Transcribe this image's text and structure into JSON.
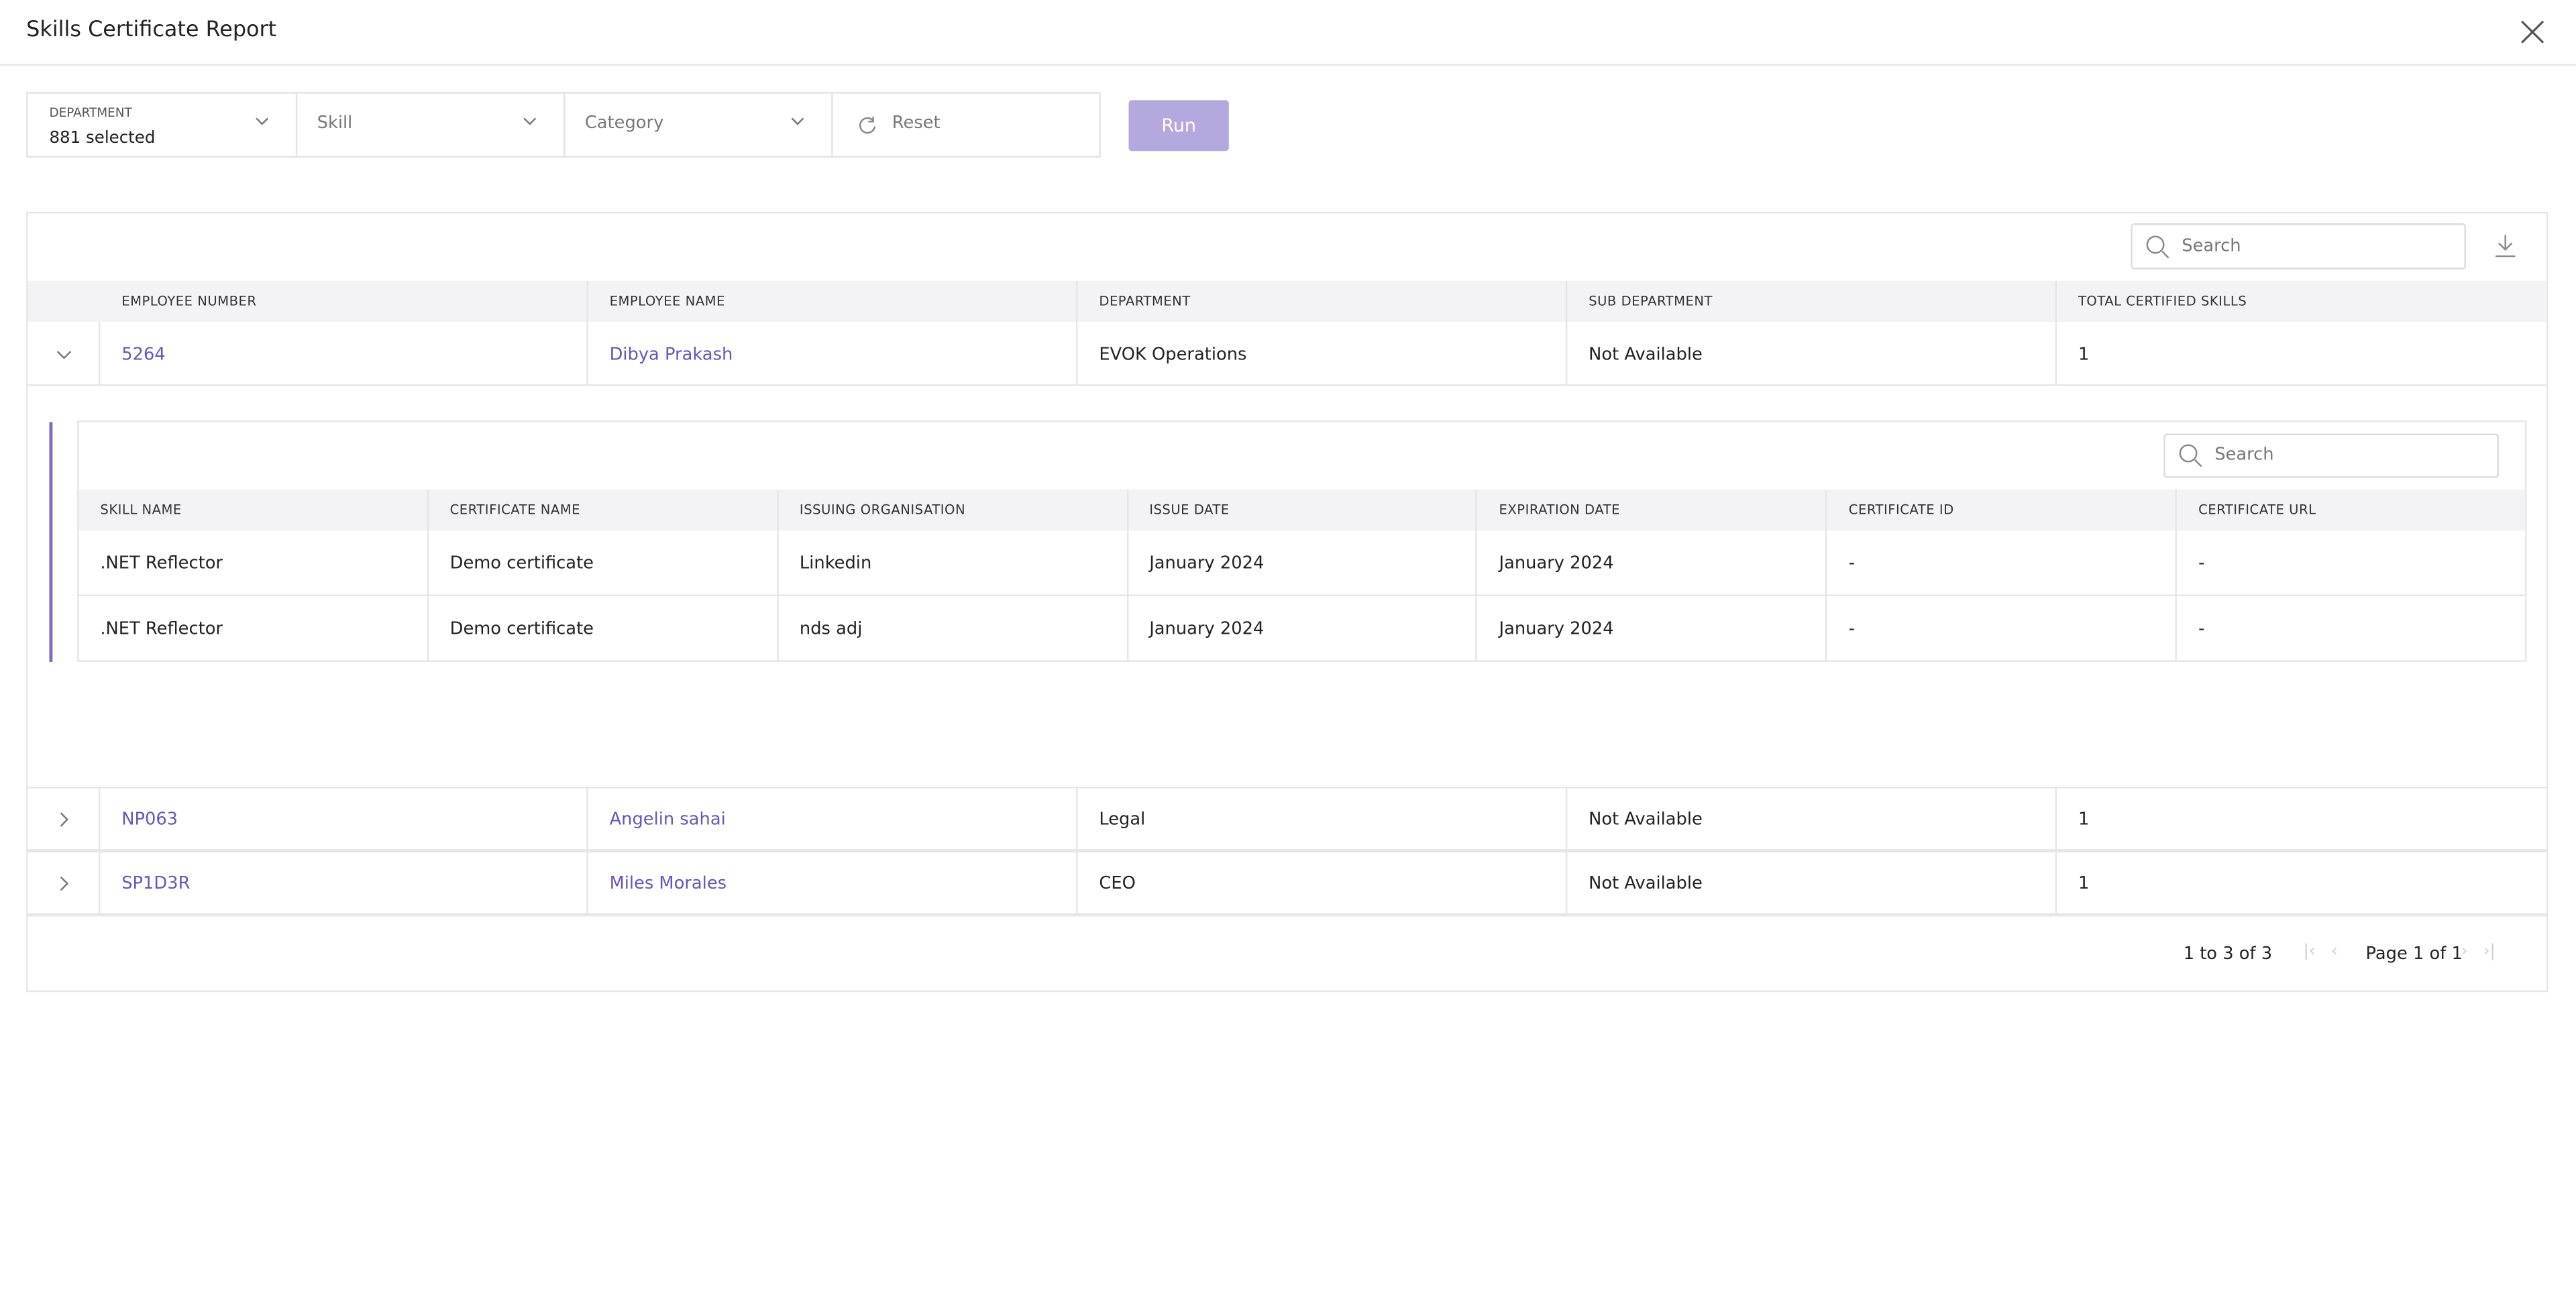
{
  "header": {
    "title": "Skills Certificate Report"
  },
  "filters": {
    "department_label": "DEPARTMENT",
    "department_value": "881 selected",
    "skill": "Skill",
    "category": "Category",
    "reset": "Reset",
    "run": "Run"
  },
  "table": {
    "search_placeholder": "Search",
    "columns": [
      "EMPLOYEE NUMBER",
      "EMPLOYEE NAME",
      "DEPARTMENT",
      "SUB DEPARTMENT",
      "TOTAL CERTIFIED SKILLS"
    ],
    "rows": [
      [
        "5264",
        "Dibya Prakash",
        "EVOK Operations",
        "Not Available",
        "1"
      ],
      [
        "NP063",
        "Angelin sahai",
        "Legal",
        "Not Available",
        "1"
      ],
      [
        "SP1D3R",
        "Miles Morales",
        "CEO",
        "Not Available",
        "1"
      ]
    ]
  },
  "sub_table": {
    "search_placeholder": "Search",
    "columns": [
      "SKILL NAME",
      "CERTIFICATE NAME",
      "ISSUING ORGANISATION",
      "ISSUE DATE",
      "EXPIRATION DATE",
      "CERTIFICATE ID",
      "CERTIFICATE URL"
    ],
    "rows": [
      [
        ".NET Reflector",
        "Demo certificate",
        "Linkedin",
        "January 2024",
        "January 2024",
        "-",
        "-"
      ],
      [
        ".NET Reflector",
        "Demo certificate",
        "nds adj",
        "January 2024",
        "January 2024",
        "-",
        "-"
      ]
    ]
  },
  "pagination": {
    "range": "1 to 3 of 3",
    "page": "Page 1 of 1"
  }
}
